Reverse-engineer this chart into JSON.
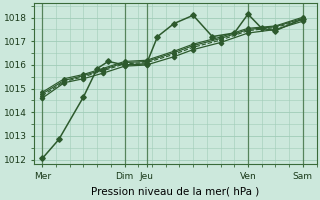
{
  "xlabel": "Pression niveau de la mer( hPa )",
  "background_color": "#cce8dc",
  "grid_color": "#a0ccb8",
  "line_color": "#2d5a2d",
  "ylim": [
    1011.8,
    1018.6
  ],
  "yticks": [
    1012,
    1013,
    1014,
    1015,
    1016,
    1017,
    1018
  ],
  "xtick_positions": [
    0.0,
    3.0,
    3.8,
    7.5,
    9.5
  ],
  "xtick_labels": [
    "Mer",
    "Dim",
    "Jeu",
    "Ven",
    "Sam"
  ],
  "vline_positions": [
    0.0,
    3.0,
    3.8,
    7.5,
    9.5
  ],
  "lines": [
    {
      "x": [
        0.0,
        0.6,
        1.5,
        2.0,
        2.4,
        3.0,
        3.8,
        4.2,
        4.8,
        5.5,
        6.2,
        7.0,
        7.5,
        8.0,
        8.5,
        9.5
      ],
      "y": [
        1012.05,
        1012.85,
        1014.65,
        1015.85,
        1016.15,
        1016.0,
        1016.05,
        1017.2,
        1017.75,
        1018.1,
        1017.2,
        1017.35,
        1018.15,
        1017.55,
        1017.45,
        1017.95
      ],
      "style": "-",
      "marker": "D",
      "markersize": 2.8,
      "linewidth": 1.1
    },
    {
      "x": [
        0.0,
        0.8,
        1.5,
        2.2,
        3.0,
        3.8,
        4.8,
        5.5,
        6.5,
        7.5,
        8.5,
        9.5
      ],
      "y": [
        1014.6,
        1015.25,
        1015.42,
        1015.65,
        1015.95,
        1016.0,
        1016.35,
        1016.65,
        1016.95,
        1017.35,
        1017.5,
        1017.85
      ],
      "style": "-",
      "marker": "D",
      "markersize": 2.3,
      "linewidth": 0.9
    },
    {
      "x": [
        0.0,
        0.8,
        1.5,
        2.2,
        3.0,
        3.8,
        4.8,
        5.5,
        6.5,
        7.5,
        8.5,
        9.5
      ],
      "y": [
        1014.7,
        1015.3,
        1015.5,
        1015.75,
        1016.05,
        1016.1,
        1016.45,
        1016.75,
        1017.05,
        1017.45,
        1017.58,
        1017.92
      ],
      "style": "--",
      "marker": "D",
      "markersize": 2.0,
      "linewidth": 0.85
    },
    {
      "x": [
        0.0,
        0.8,
        1.5,
        2.2,
        3.0,
        3.8,
        4.8,
        5.5,
        6.5,
        7.5,
        8.5,
        9.5
      ],
      "y": [
        1014.78,
        1015.35,
        1015.55,
        1015.8,
        1016.1,
        1016.15,
        1016.52,
        1016.82,
        1017.12,
        1017.5,
        1017.62,
        1017.97
      ],
      "style": "-",
      "marker": "D",
      "markersize": 2.0,
      "linewidth": 0.85
    },
    {
      "x": [
        0.0,
        0.8,
        1.5,
        2.2,
        3.0,
        3.8,
        4.8,
        5.5,
        6.5,
        7.5,
        8.5,
        9.5
      ],
      "y": [
        1014.85,
        1015.42,
        1015.6,
        1015.85,
        1016.15,
        1016.2,
        1016.58,
        1016.88,
        1017.18,
        1017.55,
        1017.65,
        1018.02
      ],
      "style": "-",
      "marker": "D",
      "markersize": 2.0,
      "linewidth": 0.85
    }
  ],
  "tick_fontsize": 6.5,
  "label_fontsize": 7.5
}
